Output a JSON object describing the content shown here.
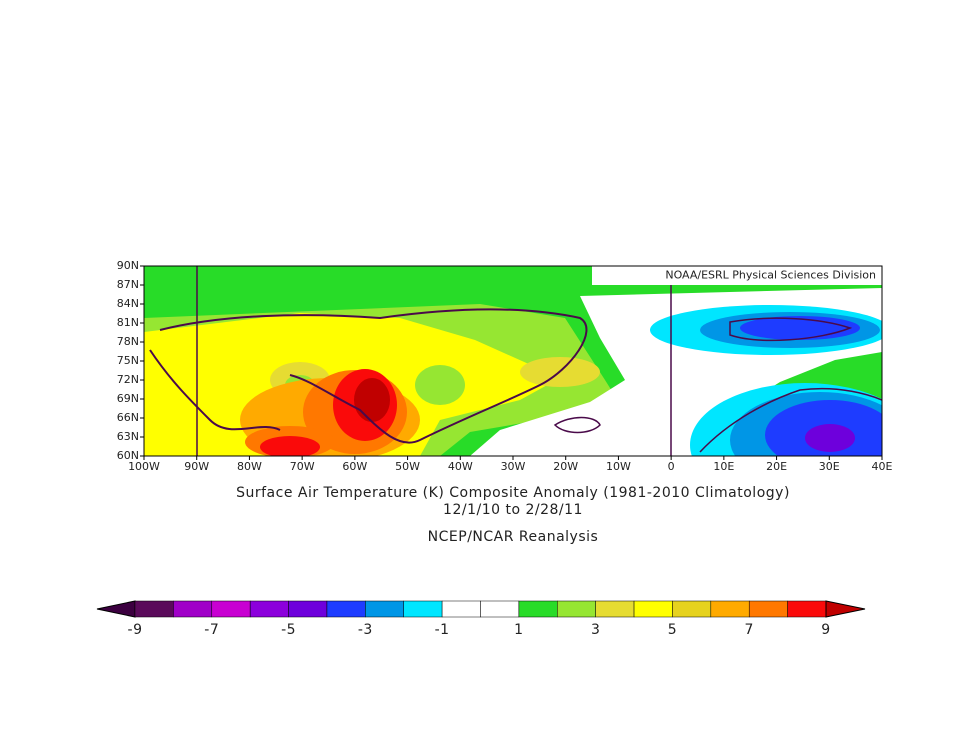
{
  "credit": "NOAA/ESRL Physical Sciences Division",
  "x_labels": [
    "100W",
    "90W",
    "80W",
    "70W",
    "60W",
    "50W",
    "40W",
    "30W",
    "20W",
    "10W",
    "0",
    "10E",
    "20E",
    "30E",
    "40E"
  ],
  "y_labels": [
    "90N",
    "87N",
    "84N",
    "81N",
    "78N",
    "75N",
    "72N",
    "69N",
    "66N",
    "63N",
    "60N"
  ],
  "title": "Surface Air Temperature (K) Composite Anomaly (1981-2010 Climatology)",
  "dates": "12/1/10  to 2/28/11",
  "source": "NCEP/NCAR Reanalysis",
  "colorbar": {
    "ticks": [
      -9,
      -7,
      -5,
      -3,
      -1,
      1,
      3,
      5,
      7,
      9
    ],
    "colors": [
      "#3c0040",
      "#5a0a5a",
      "#a000c8",
      "#c800d2",
      "#8c00dc",
      "#6e00dc",
      "#1e3cff",
      "#0096e6",
      "#00e6ff",
      "#ffffff",
      "#ffffff",
      "#28dc28",
      "#96e632",
      "#e6dc32",
      "#ffff00",
      "#e6d21e",
      "#ffaa00",
      "#ff7800",
      "#fa0a0a",
      "#c00000"
    ]
  }
}
